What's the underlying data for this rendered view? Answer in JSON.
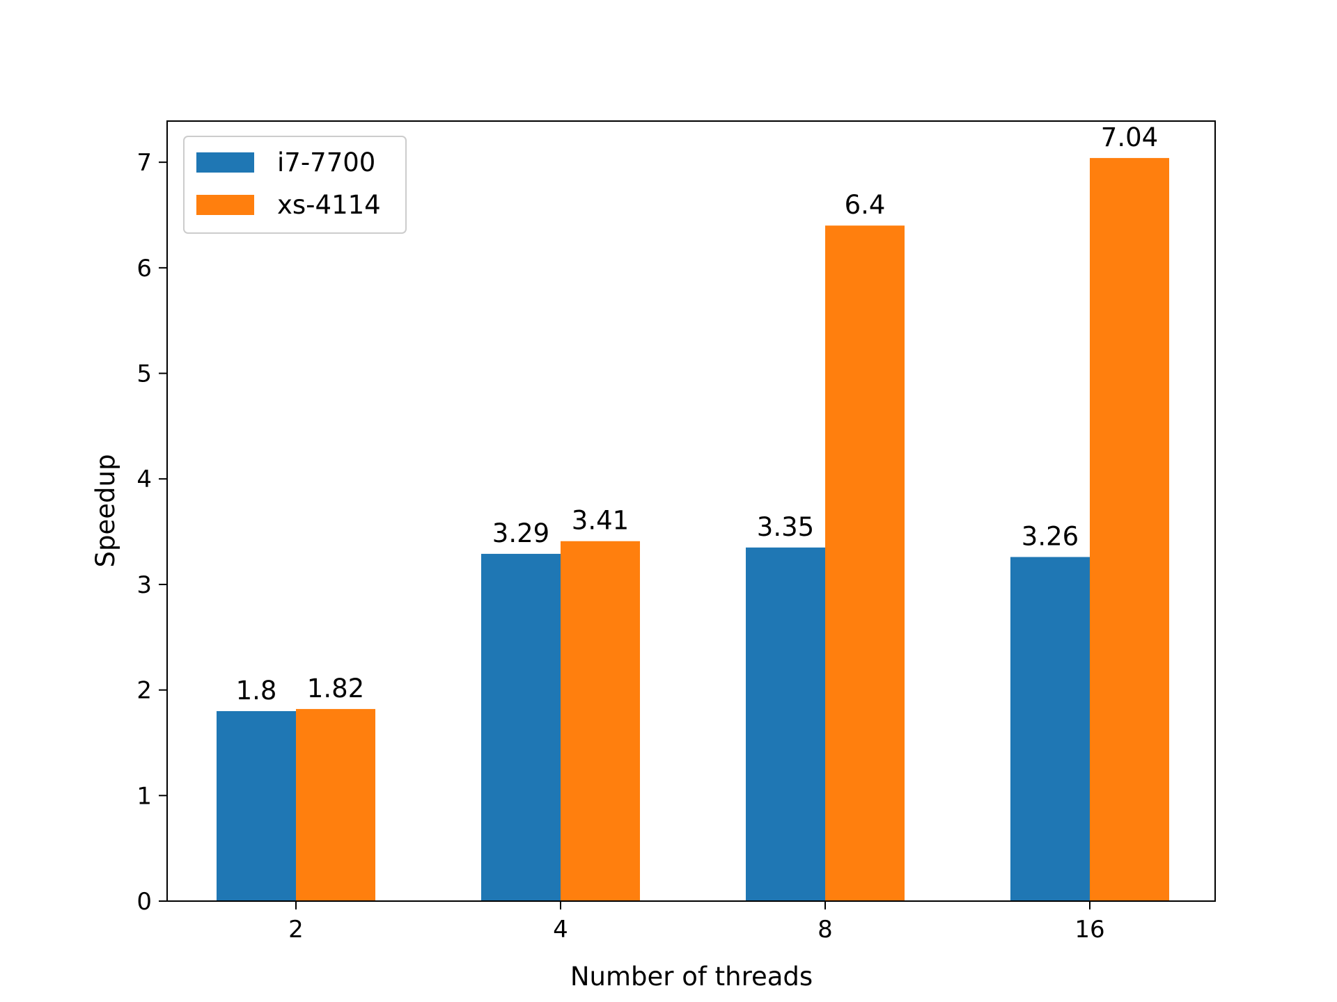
{
  "chart_data": {
    "type": "bar",
    "title": "",
    "xlabel": "Number of threads",
    "ylabel": "Speedup",
    "categories": [
      "2",
      "4",
      "8",
      "16"
    ],
    "series": [
      {
        "name": "i7-7700",
        "color": "#1f77b4",
        "values": [
          1.8,
          3.29,
          3.35,
          3.26
        ],
        "labels": [
          "1.8",
          "3.29",
          "3.35",
          "3.26"
        ]
      },
      {
        "name": "xs-4114",
        "color": "#ff7f0e",
        "values": [
          1.82,
          3.41,
          6.4,
          7.04
        ],
        "labels": [
          "1.82",
          "3.41",
          "6.4",
          "7.04"
        ]
      }
    ],
    "ylim": [
      0,
      7.39
    ],
    "yticks": [
      0,
      1,
      2,
      3,
      4,
      5,
      6,
      7
    ],
    "grid": false,
    "legend_position": "upper-left"
  }
}
